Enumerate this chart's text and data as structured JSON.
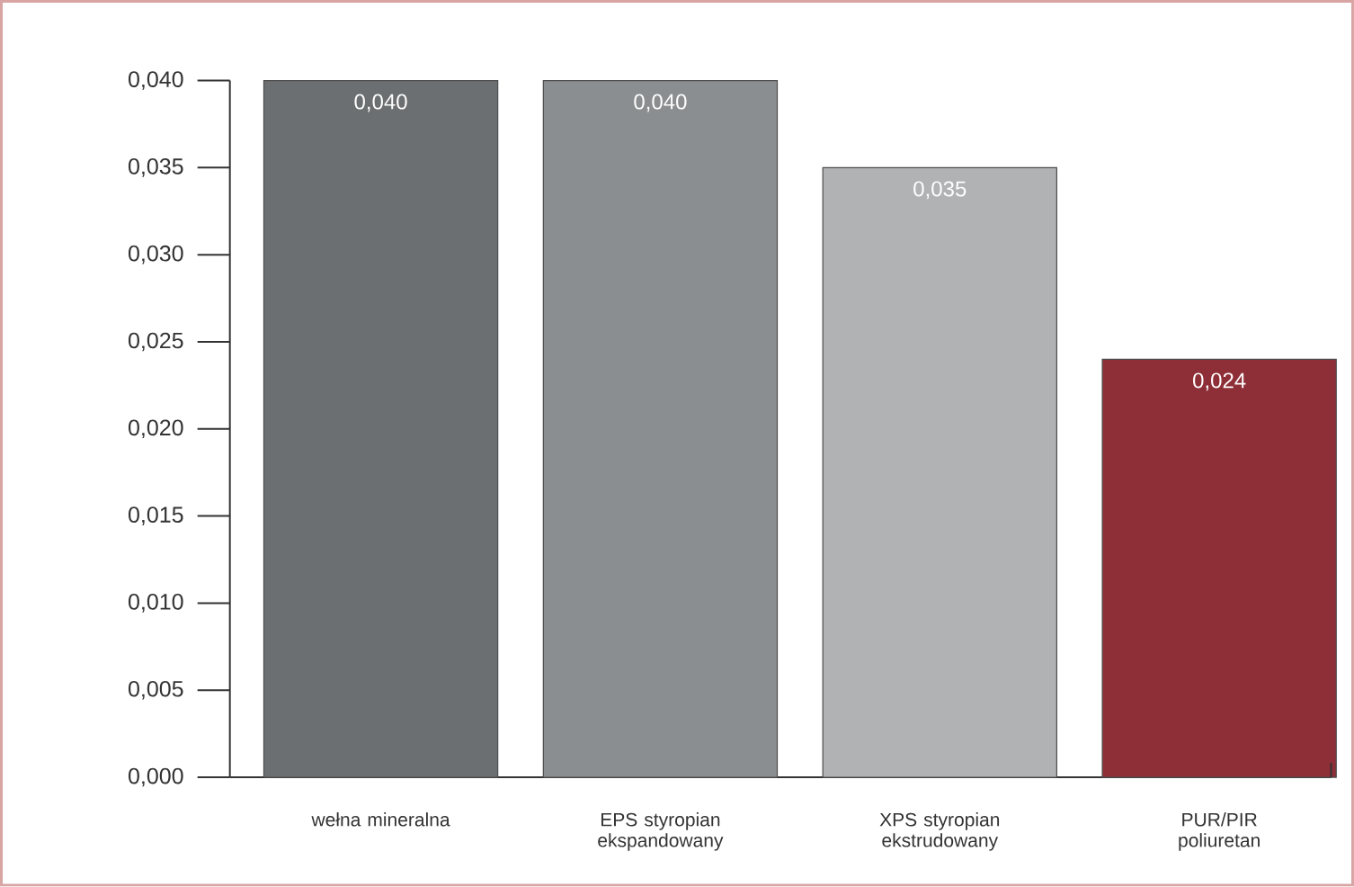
{
  "chart_data": {
    "type": "bar",
    "categories": [
      "wełna mineralna",
      "EPS styropian ekspandowany",
      "XPS styropian ekstrudowany",
      "PUR/PIR poliuretan"
    ],
    "values": [
      0.04,
      0.04,
      0.035,
      0.024
    ],
    "colors": [
      "#6c6f71",
      "#8b8e90",
      "#b0b2b4",
      "#8e2f37"
    ],
    "value_labels": [
      "0,040",
      "0,040",
      "0,035",
      "0,024"
    ],
    "ylim": [
      0,
      0.04
    ],
    "yticks": [
      {
        "value": 0,
        "label": "0,000"
      },
      {
        "value": 0.005,
        "label": "0,005"
      },
      {
        "value": 0.01,
        "label": "0,010"
      },
      {
        "value": 0.015,
        "label": "0,015"
      },
      {
        "value": 0.02,
        "label": "0,020"
      },
      {
        "value": 0.025,
        "label": "0,025"
      },
      {
        "value": 0.03,
        "label": "0,030"
      },
      {
        "value": 0.035,
        "label": "0,035"
      },
      {
        "value": 0.04,
        "label": "0,040"
      }
    ],
    "grid": false
  }
}
